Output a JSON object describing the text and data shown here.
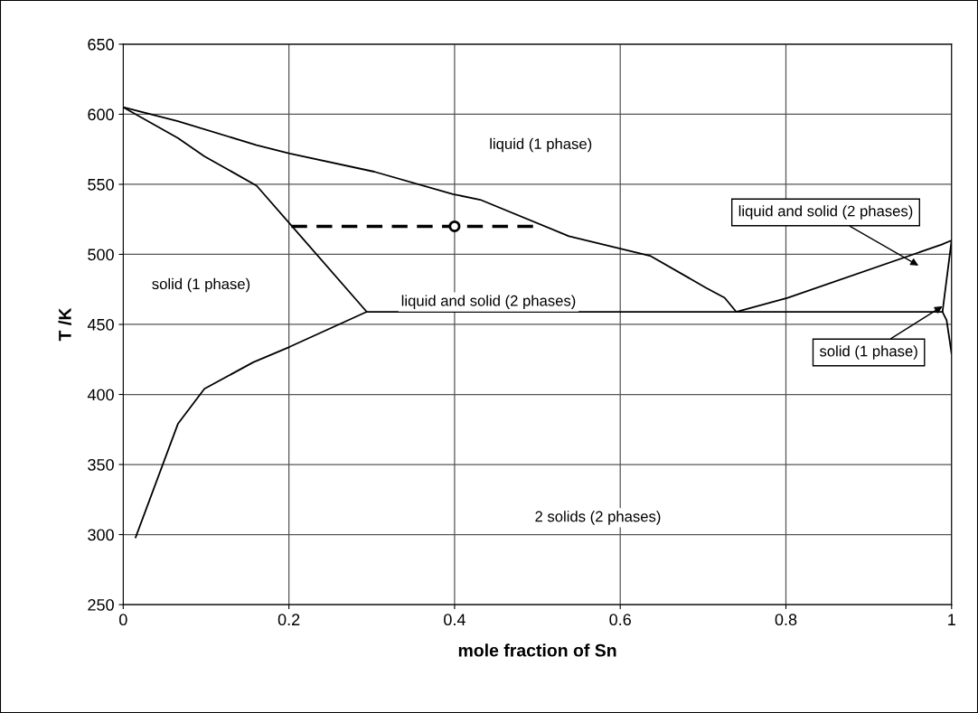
{
  "chart_data": {
    "type": "line",
    "xlabel": "mole fraction of Sn",
    "ylabel": "T /K",
    "xlim": [
      0,
      1
    ],
    "xticks": [
      0,
      0.2,
      0.4,
      0.6,
      0.8,
      1
    ],
    "ylim": [
      250,
      650
    ],
    "yticks": [
      250,
      300,
      350,
      400,
      450,
      500,
      550,
      600,
      650
    ],
    "grid": true,
    "legend": false,
    "series": [
      {
        "color": "#000000",
        "x": [
          0,
          0.066,
          0.161,
          0.201,
          0.303,
          0.398,
          0.431,
          0.538,
          0.636,
          0.704,
          0.726,
          0.74,
          0.802,
          0.988,
          1.0,
          0.989,
          0.994,
          1.0
        ],
        "values": [
          605,
          595,
          578,
          572,
          559,
          543,
          539,
          513,
          499,
          476,
          469,
          459,
          469,
          507,
          510,
          459,
          453,
          429
        ]
      },
      {
        "color": "#000000",
        "x": [
          0,
          0.066,
          0.098,
          0.161,
          0.294
        ],
        "values": [
          605,
          583,
          570,
          549,
          459
        ]
      },
      {
        "color": "#000000",
        "x": [
          0.015,
          0.066,
          0.098,
          0.157,
          0.201,
          0.294,
          0.989
        ],
        "values": [
          298,
          379,
          404,
          423,
          434,
          459,
          459
        ]
      },
      {
        "color": "#000000",
        "line_style": "dashed",
        "x": [
          0.203,
          0.5
        ],
        "values": [
          520,
          520
        ]
      },
      {
        "type": "scatter",
        "color": "#000000",
        "marker": "circle",
        "x": [
          0.4
        ],
        "values": [
          520
        ]
      }
    ],
    "annotations": [
      "liquid (1 phase)",
      "solid (1 phase)",
      "liquid and solid (2 phases)",
      "2 solids (2 phases)",
      "liquid and solid (2 phases)",
      {
        "text": "solid (1 phase)",
        "x": 0.989,
        "y": 463
      }
    ]
  }
}
